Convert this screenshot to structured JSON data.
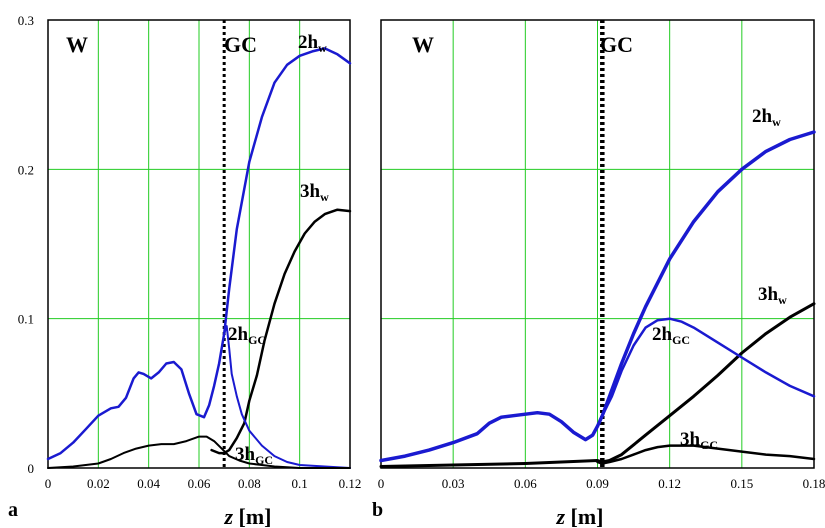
{
  "chart_data": [
    {
      "type": "line",
      "panel_label": "a",
      "xlabel": "z [m]",
      "xlabel_main": "z",
      "xlabel_unit": "[m]",
      "xlim": [
        0,
        0.12
      ],
      "ylim": [
        0,
        0.3
      ],
      "xticks": [
        "0",
        "0.02",
        "0.04",
        "0.06",
        "0.08",
        "0.1",
        "0.12"
      ],
      "yticks": [
        "0",
        "0.1",
        "0.2",
        "0.3"
      ],
      "grid": true,
      "regions": [
        "W",
        "GC"
      ],
      "boundary_z": 0.07,
      "series": [
        {
          "name": "2hw",
          "label_main": "2h",
          "label_sub": "w",
          "color": "#1a1ad0",
          "width": 2.5,
          "x": [
            0.0,
            0.005,
            0.01,
            0.015,
            0.02,
            0.025,
            0.028,
            0.031,
            0.034,
            0.036,
            0.038,
            0.041,
            0.044,
            0.047,
            0.05,
            0.053,
            0.056,
            0.059,
            0.062,
            0.064,
            0.066,
            0.068,
            0.07,
            0.072,
            0.075,
            0.08,
            0.085,
            0.09,
            0.095,
            0.1,
            0.105,
            0.11,
            0.115,
            0.12
          ],
          "y": [
            0.006,
            0.01,
            0.017,
            0.026,
            0.035,
            0.04,
            0.041,
            0.047,
            0.06,
            0.064,
            0.063,
            0.06,
            0.064,
            0.07,
            0.071,
            0.066,
            0.05,
            0.036,
            0.034,
            0.042,
            0.055,
            0.07,
            0.09,
            0.12,
            0.16,
            0.205,
            0.235,
            0.258,
            0.27,
            0.276,
            0.279,
            0.281,
            0.277,
            0.271
          ]
        },
        {
          "name": "3hw",
          "label_main": "3h",
          "label_sub": "w",
          "color": "#000000",
          "width": 2.5,
          "x": [
            0.065,
            0.068,
            0.07,
            0.072,
            0.075,
            0.078,
            0.08,
            0.083,
            0.086,
            0.09,
            0.094,
            0.098,
            0.102,
            0.106,
            0.11,
            0.115,
            0.12
          ],
          "y": [
            0.012,
            0.01,
            0.01,
            0.012,
            0.02,
            0.03,
            0.045,
            0.062,
            0.085,
            0.11,
            0.13,
            0.145,
            0.157,
            0.165,
            0.17,
            0.173,
            0.172
          ]
        },
        {
          "name": "2hGC",
          "label_main": "2h",
          "label_sub": "GC",
          "color": "#1a1ad0",
          "width": 2,
          "x": [
            0.07,
            0.071,
            0.072,
            0.073,
            0.075,
            0.077,
            0.08,
            0.085,
            0.09,
            0.095,
            0.1,
            0.11,
            0.12
          ],
          "y": [
            0.09,
            0.095,
            0.08,
            0.063,
            0.048,
            0.036,
            0.025,
            0.015,
            0.008,
            0.004,
            0.002,
            0.001,
            0.0
          ]
        },
        {
          "name": "3hGC",
          "label_main": "3h",
          "label_sub": "GC",
          "color": "#000000",
          "width": 2,
          "x": [
            0.0,
            0.01,
            0.02,
            0.025,
            0.03,
            0.035,
            0.04,
            0.045,
            0.05,
            0.055,
            0.06,
            0.063,
            0.066,
            0.069,
            0.072,
            0.076,
            0.08,
            0.085,
            0.09,
            0.1,
            0.11,
            0.12
          ],
          "y": [
            0.0,
            0.001,
            0.003,
            0.006,
            0.01,
            0.013,
            0.015,
            0.016,
            0.016,
            0.018,
            0.021,
            0.021,
            0.018,
            0.013,
            0.008,
            0.005,
            0.003,
            0.002,
            0.001,
            0.0,
            0.0,
            0.0
          ]
        }
      ]
    },
    {
      "type": "line",
      "panel_label": "b",
      "xlabel": "z [m]",
      "xlabel_main": "z",
      "xlabel_unit": "[m]",
      "xlim": [
        0,
        0.18
      ],
      "ylim": [
        0,
        0.3
      ],
      "xticks": [
        "0",
        "0.03",
        "0.06",
        "0.09",
        "0.12",
        "0.15",
        "0.18"
      ],
      "grid": true,
      "regions": [
        "W",
        "GC"
      ],
      "boundary_z": 0.092,
      "series": [
        {
          "name": "2hw",
          "label_main": "2h",
          "label_sub": "w",
          "color": "#1a1ad0",
          "width": 3.5,
          "x": [
            0.0,
            0.01,
            0.02,
            0.03,
            0.04,
            0.045,
            0.05,
            0.055,
            0.06,
            0.065,
            0.07,
            0.075,
            0.08,
            0.085,
            0.088,
            0.09,
            0.092,
            0.095,
            0.1,
            0.105,
            0.11,
            0.12,
            0.13,
            0.14,
            0.15,
            0.16,
            0.17,
            0.18
          ],
          "y": [
            0.005,
            0.008,
            0.012,
            0.017,
            0.023,
            0.03,
            0.034,
            0.035,
            0.036,
            0.037,
            0.036,
            0.031,
            0.024,
            0.019,
            0.022,
            0.028,
            0.035,
            0.048,
            0.07,
            0.09,
            0.108,
            0.14,
            0.165,
            0.185,
            0.2,
            0.212,
            0.22,
            0.225
          ]
        },
        {
          "name": "3hw",
          "label_main": "3h",
          "label_sub": "w",
          "color": "#000000",
          "width": 3,
          "x": [
            0.0,
            0.03,
            0.06,
            0.09,
            0.092,
            0.095,
            0.1,
            0.11,
            0.12,
            0.13,
            0.14,
            0.15,
            0.16,
            0.17,
            0.18
          ],
          "y": [
            0.001,
            0.002,
            0.003,
            0.005,
            0.004,
            0.005,
            0.009,
            0.022,
            0.035,
            0.048,
            0.062,
            0.077,
            0.09,
            0.101,
            0.11
          ]
        },
        {
          "name": "2hGC",
          "label_main": "2h",
          "label_sub": "GC",
          "color": "#1a1ad0",
          "width": 2.5,
          "x": [
            0.092,
            0.096,
            0.1,
            0.105,
            0.11,
            0.115,
            0.12,
            0.125,
            0.13,
            0.14,
            0.15,
            0.16,
            0.17,
            0.18
          ],
          "y": [
            0.035,
            0.048,
            0.065,
            0.082,
            0.094,
            0.099,
            0.1,
            0.098,
            0.094,
            0.084,
            0.074,
            0.064,
            0.055,
            0.048
          ]
        },
        {
          "name": "3hGC",
          "label_main": "3h",
          "label_sub": "GC",
          "color": "#000000",
          "width": 2.5,
          "x": [
            0.09,
            0.092,
            0.095,
            0.1,
            0.105,
            0.11,
            0.115,
            0.12,
            0.125,
            0.13,
            0.14,
            0.15,
            0.16,
            0.17,
            0.18
          ],
          "y": [
            0.004,
            0.003,
            0.004,
            0.006,
            0.009,
            0.012,
            0.014,
            0.015,
            0.015,
            0.015,
            0.013,
            0.011,
            0.009,
            0.008,
            0.006
          ]
        }
      ]
    }
  ]
}
